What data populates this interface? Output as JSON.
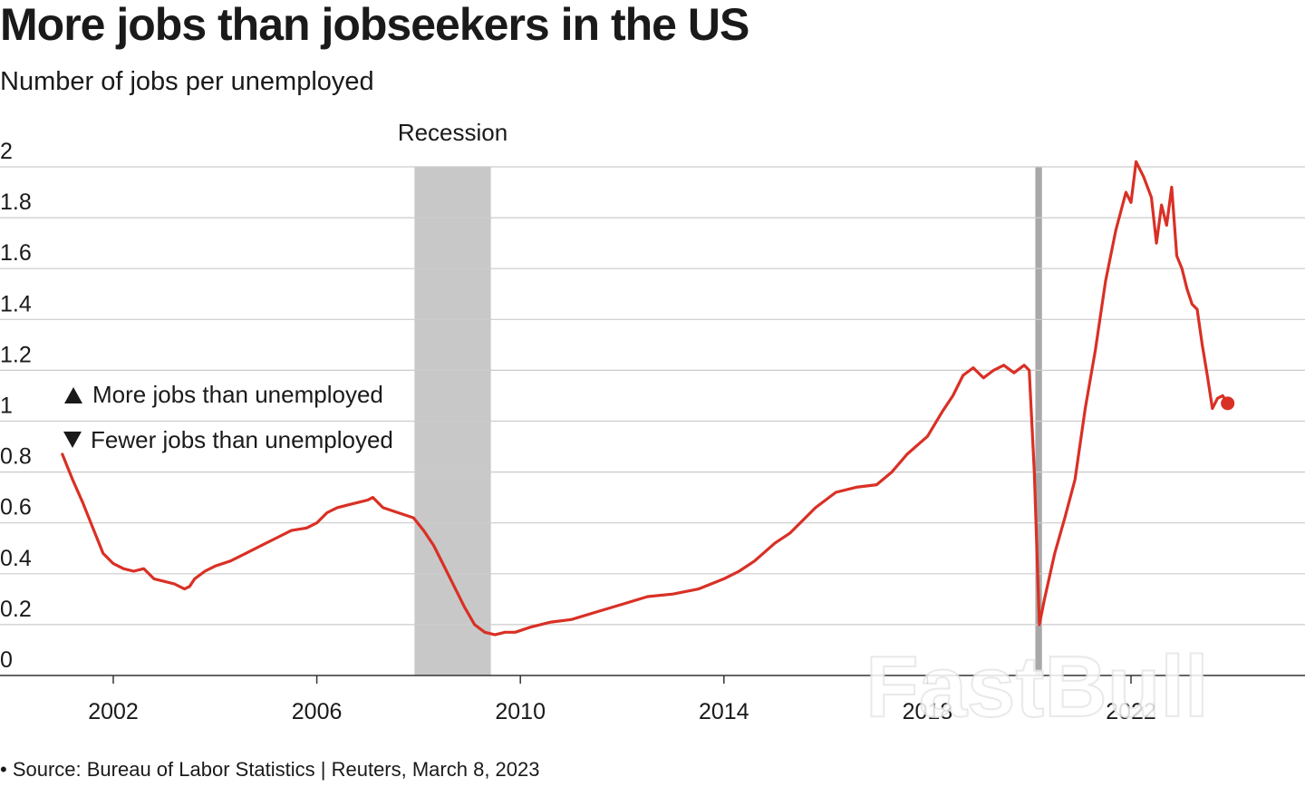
{
  "title": "More jobs than jobseekers in the US",
  "subtitle": "Number of jobs per unemployed",
  "source": "• Source: Bureau of Labor Statistics | Reuters, March 8, 2023",
  "legend": {
    "up": "More jobs than unemployed",
    "down": "Fewer jobs than unemployed"
  },
  "watermark": "FastBull",
  "colors": {
    "line": "#d93025",
    "grid": "#cccccc",
    "recession": "#c8c8c8",
    "recession_2020": "#a8a8a8"
  },
  "chart_data": {
    "type": "line",
    "title": "More jobs than jobseekers in the US",
    "ylabel": "Number of jobs per unemployed",
    "xlabel": "",
    "ylim": [
      0,
      2
    ],
    "xlim": [
      2000.9,
      2024.0
    ],
    "grid": true,
    "yticks": [
      {
        "value": 0,
        "label": "0"
      },
      {
        "value": 0.2,
        "label": "0.2"
      },
      {
        "value": 0.4,
        "label": "0.4"
      },
      {
        "value": 0.6,
        "label": "0.6"
      },
      {
        "value": 0.8,
        "label": "0.8"
      },
      {
        "value": 1,
        "label": "1"
      },
      {
        "value": 1.2,
        "label": "1.2"
      },
      {
        "value": 1.4,
        "label": "1.4"
      },
      {
        "value": 1.6,
        "label": "1.6"
      },
      {
        "value": 1.8,
        "label": "1.8"
      },
      {
        "value": 2,
        "label": "2"
      }
    ],
    "xticks": [
      {
        "value": 2002,
        "label": "2002"
      },
      {
        "value": 2006,
        "label": "2006"
      },
      {
        "value": 2010,
        "label": "2010"
      },
      {
        "value": 2014,
        "label": "2014"
      },
      {
        "value": 2018,
        "label": "2018"
      },
      {
        "value": 2022,
        "label": "2022"
      }
    ],
    "recessions": [
      {
        "start": 2007.92,
        "end": 2009.42,
        "label": "Recession"
      },
      {
        "start": 2020.12,
        "end": 2020.25,
        "label": ""
      }
    ],
    "x": [
      2001.0,
      2001.2,
      2001.4,
      2001.6,
      2001.8,
      2002.0,
      2002.2,
      2002.4,
      2002.6,
      2002.8,
      2003.0,
      2003.2,
      2003.4,
      2003.5,
      2003.6,
      2003.8,
      2004.0,
      2004.3,
      2004.6,
      2004.9,
      2005.2,
      2005.5,
      2005.8,
      2006.0,
      2006.2,
      2006.4,
      2006.6,
      2006.8,
      2007.0,
      2007.1,
      2007.3,
      2007.6,
      2007.9,
      2008.1,
      2008.3,
      2008.5,
      2008.7,
      2008.9,
      2009.1,
      2009.3,
      2009.5,
      2009.7,
      2009.9,
      2010.2,
      2010.6,
      2011.0,
      2011.5,
      2012.0,
      2012.5,
      2013.0,
      2013.5,
      2014.0,
      2014.3,
      2014.6,
      2015.0,
      2015.3,
      2015.5,
      2015.8,
      2016.2,
      2016.6,
      2017.0,
      2017.3,
      2017.6,
      2018.0,
      2018.3,
      2018.5,
      2018.7,
      2018.9,
      2019.1,
      2019.3,
      2019.5,
      2019.7,
      2019.9,
      2020.0,
      2020.1,
      2020.2,
      2020.3,
      2020.5,
      2020.7,
      2020.9,
      2021.1,
      2021.3,
      2021.5,
      2021.7,
      2021.9,
      2022.0,
      2022.1,
      2022.25,
      2022.4,
      2022.5,
      2022.6,
      2022.7,
      2022.8,
      2022.9,
      2023.0,
      2023.1,
      2023.2,
      2023.3,
      2023.4,
      2023.5,
      2023.6,
      2023.7,
      2023.8,
      2023.9
    ],
    "series": [
      {
        "values": [
          0.87,
          0.77,
          0.68,
          0.58,
          0.48,
          0.44,
          0.42,
          0.41,
          0.42,
          0.38,
          0.37,
          0.36,
          0.34,
          0.35,
          0.38,
          0.41,
          0.43,
          0.45,
          0.48,
          0.51,
          0.54,
          0.57,
          0.58,
          0.6,
          0.64,
          0.66,
          0.67,
          0.68,
          0.69,
          0.7,
          0.66,
          0.64,
          0.62,
          0.57,
          0.51,
          0.43,
          0.35,
          0.27,
          0.2,
          0.17,
          0.16,
          0.17,
          0.17,
          0.19,
          0.21,
          0.22,
          0.25,
          0.28,
          0.31,
          0.32,
          0.34,
          0.38,
          0.41,
          0.45,
          0.52,
          0.56,
          0.6,
          0.66,
          0.72,
          0.74,
          0.75,
          0.8,
          0.87,
          0.94,
          1.04,
          1.1,
          1.18,
          1.21,
          1.17,
          1.2,
          1.22,
          1.19,
          1.22,
          1.2,
          0.8,
          0.2,
          0.3,
          0.48,
          0.62,
          0.77,
          1.05,
          1.28,
          1.55,
          1.75,
          1.9,
          1.86,
          2.02,
          1.96,
          1.88,
          1.7,
          1.85,
          1.77,
          1.92,
          1.65,
          1.6,
          1.52,
          1.46,
          1.44,
          1.3,
          1.18,
          1.05,
          1.09,
          1.1,
          1.07
        ]
      }
    ]
  }
}
